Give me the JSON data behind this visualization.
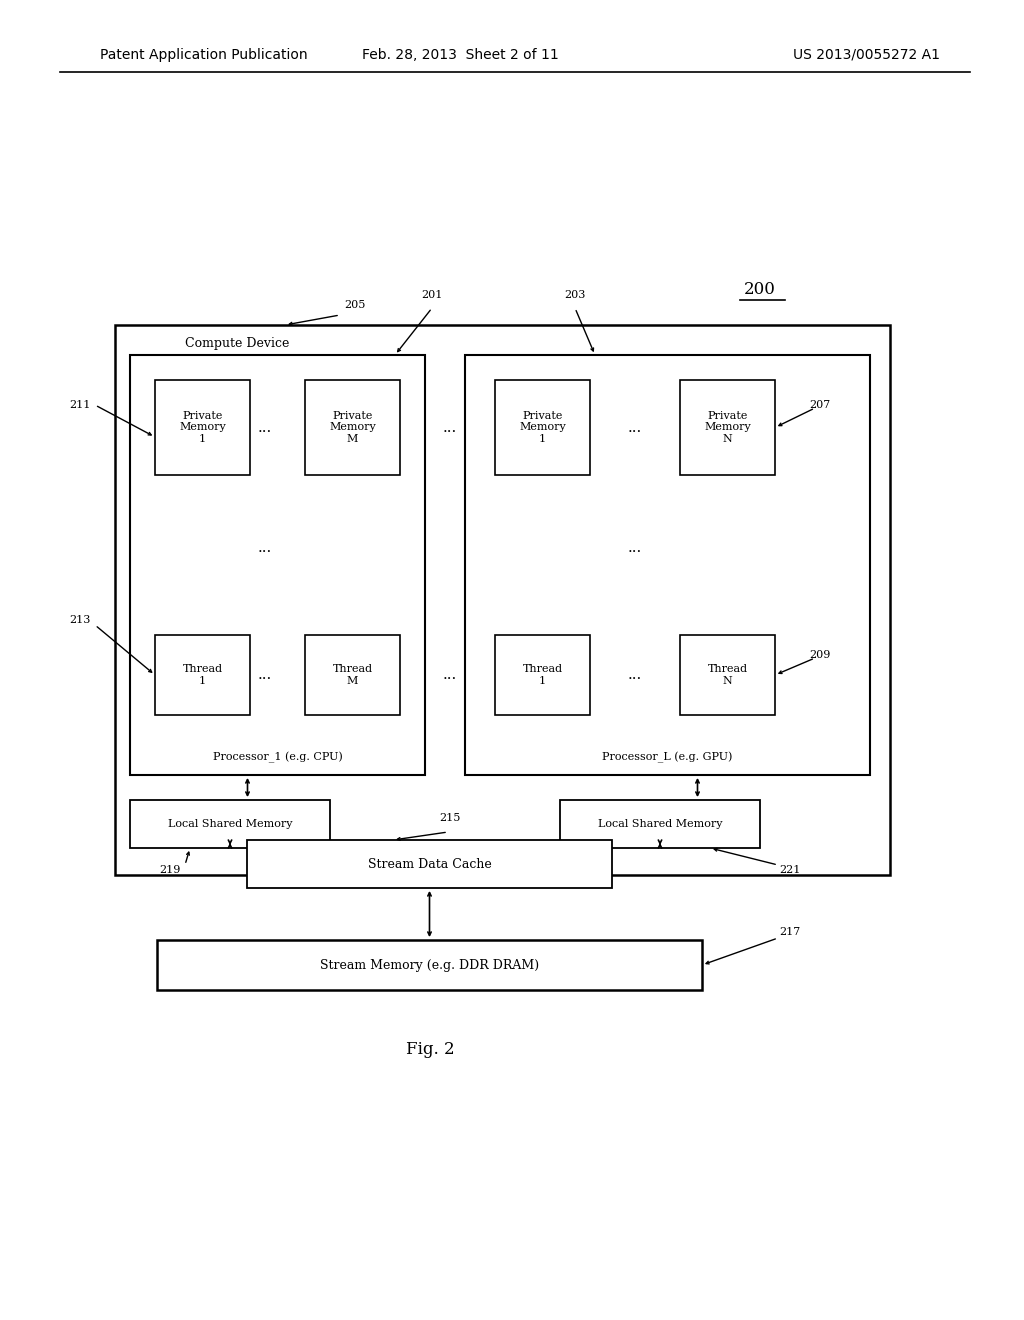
{
  "bg_color": "#ffffff",
  "header_left": "Patent Application Publication",
  "header_mid": "Feb. 28, 2013  Sheet 2 of 11",
  "header_right": "US 2013/0055272 A1",
  "fig_label": "Fig. 2",
  "ref_200": "200",
  "ref_201": "201",
  "ref_203": "203",
  "ref_205": "205",
  "ref_207": "207",
  "ref_209": "209",
  "ref_211": "211",
  "ref_213": "213",
  "ref_215": "215",
  "ref_217": "217",
  "ref_219": "219",
  "ref_221": "221",
  "compute_device_label": "Compute Device",
  "proc1_label": "Processor_1 (e.g. CPU)",
  "proc2_label": "Processor_L (e.g. GPU)",
  "pm1_1": "Private\nMemory\n1",
  "pm1_M": "Private\nMemory\nM",
  "pm2_1": "Private\nMemory\n1",
  "pm2_N": "Private\nMemory\nN",
  "t1_1": "Thread\n1",
  "t1_M": "Thread\nM",
  "t2_1": "Thread\n1",
  "t2_N": "Thread\nN",
  "lsm1": "Local Shared Memory",
  "lsm2": "Local Shared Memory",
  "sdc": "Stream Data Cache",
  "sm": "Stream Memory (e.g. DDR DRAM)"
}
